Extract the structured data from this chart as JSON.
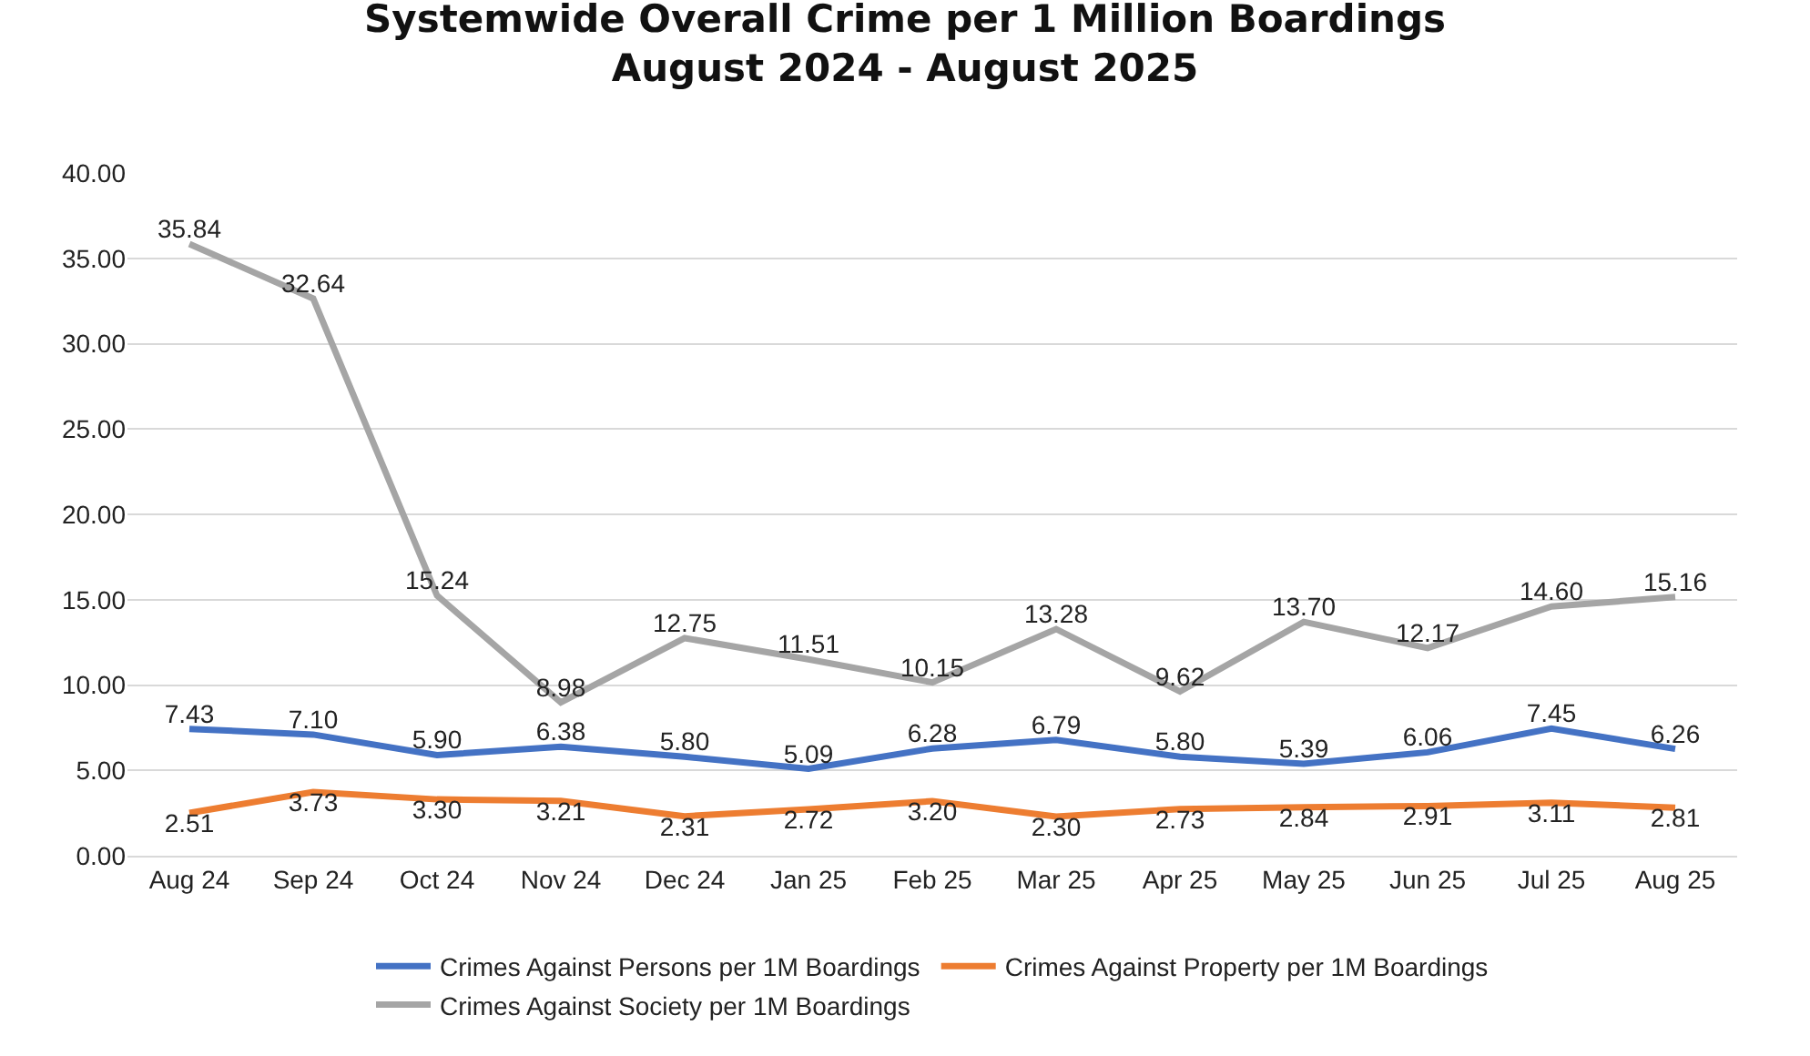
{
  "chart_data": {
    "type": "line",
    "title": "Systemwide Overall Crime per 1 Million Boardings\nAugust 2024 - August 2025",
    "categories": [
      "Aug 24",
      "Sep 24",
      "Oct 24",
      "Nov 24",
      "Dec 24",
      "Jan 25",
      "Feb 25",
      "Mar 25",
      "Apr 25",
      "May 25",
      "Jun 25",
      "Jul 25",
      "Aug 25"
    ],
    "series": [
      {
        "name": "Crimes Against Persons per 1M Boardings",
        "color": "#4472c4",
        "values": [
          7.43,
          7.1,
          5.9,
          6.38,
          5.8,
          5.09,
          6.28,
          6.79,
          5.8,
          5.39,
          6.06,
          7.45,
          6.26
        ],
        "value_labels": [
          "7.43",
          "7.10",
          "5.90",
          "6.38",
          "5.80",
          "5.09",
          "6.28",
          "6.79",
          "5.80",
          "5.39",
          "6.06",
          "7.45",
          "6.26"
        ]
      },
      {
        "name": "Crimes Against Property per 1M Boardings",
        "color": "#ed7d31",
        "values": [
          2.51,
          3.73,
          3.3,
          3.21,
          2.31,
          2.72,
          3.2,
          2.3,
          2.73,
          2.84,
          2.91,
          3.11,
          2.81
        ],
        "value_labels": [
          "2.51",
          "3.73",
          "3.30",
          "3.21",
          "2.31",
          "2.72",
          "3.20",
          "2.30",
          "2.73",
          "2.84",
          "2.91",
          "3.11",
          "2.81"
        ]
      },
      {
        "name": "Crimes Against Society per 1M Boardings",
        "color": "#a5a5a5",
        "values": [
          35.84,
          32.64,
          15.24,
          8.98,
          12.75,
          11.51,
          10.15,
          13.28,
          9.62,
          13.7,
          12.17,
          14.6,
          15.16
        ],
        "value_labels": [
          "35.84",
          "32.64",
          "15.24",
          "8.98",
          "12.75",
          "11.51",
          "10.15",
          "13.28",
          "9.62",
          "13.70",
          "12.17",
          "14.60",
          "15.16"
        ]
      }
    ],
    "ylim": [
      0,
      40
    ],
    "yticks": [
      {
        "value": 0,
        "label": "0.00"
      },
      {
        "value": 5,
        "label": "5.00"
      },
      {
        "value": 10,
        "label": "10.00"
      },
      {
        "value": 15,
        "label": "15.00"
      },
      {
        "value": 20,
        "label": "20.00"
      },
      {
        "value": 25,
        "label": "25.00"
      },
      {
        "value": 30,
        "label": "30.00"
      },
      {
        "value": 35,
        "label": "35.00"
      },
      {
        "value": 40,
        "label": "40.00"
      }
    ],
    "grid": "y",
    "legend": "bottom",
    "marker": "none",
    "line_style": "solid"
  }
}
